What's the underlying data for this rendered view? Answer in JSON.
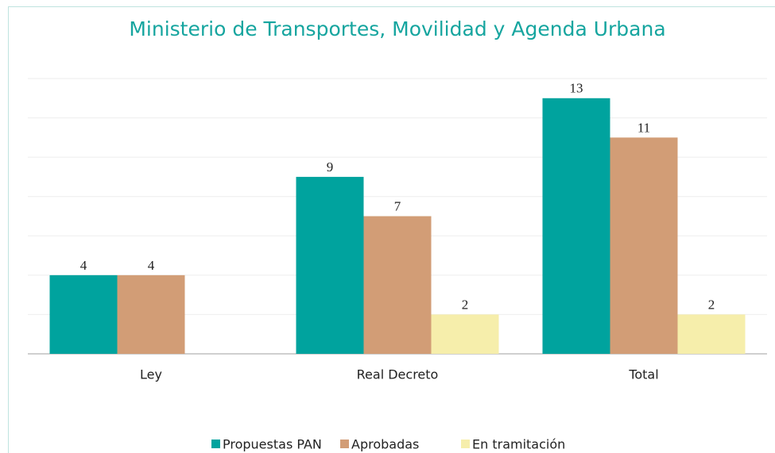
{
  "chart_data": {
    "type": "bar",
    "title": "Ministerio de Transportes, Movilidad y Agenda Urbana",
    "categories": [
      "Ley",
      "Real Decreto",
      "Total"
    ],
    "series": [
      {
        "name": "Propuestas PAN",
        "color": "#00a39e",
        "values": [
          4,
          9,
          13
        ]
      },
      {
        "name": "Aprobadas",
        "color": "#d29d76",
        "values": [
          4,
          7,
          11
        ]
      },
      {
        "name": "En tramitación",
        "color": "#f6eeab",
        "values": [
          null,
          2,
          2
        ]
      }
    ],
    "ylim": [
      0,
      14
    ],
    "yticks": [
      0,
      2,
      4,
      6,
      8,
      10,
      12,
      14
    ],
    "grid": true,
    "legend": "bottom"
  }
}
